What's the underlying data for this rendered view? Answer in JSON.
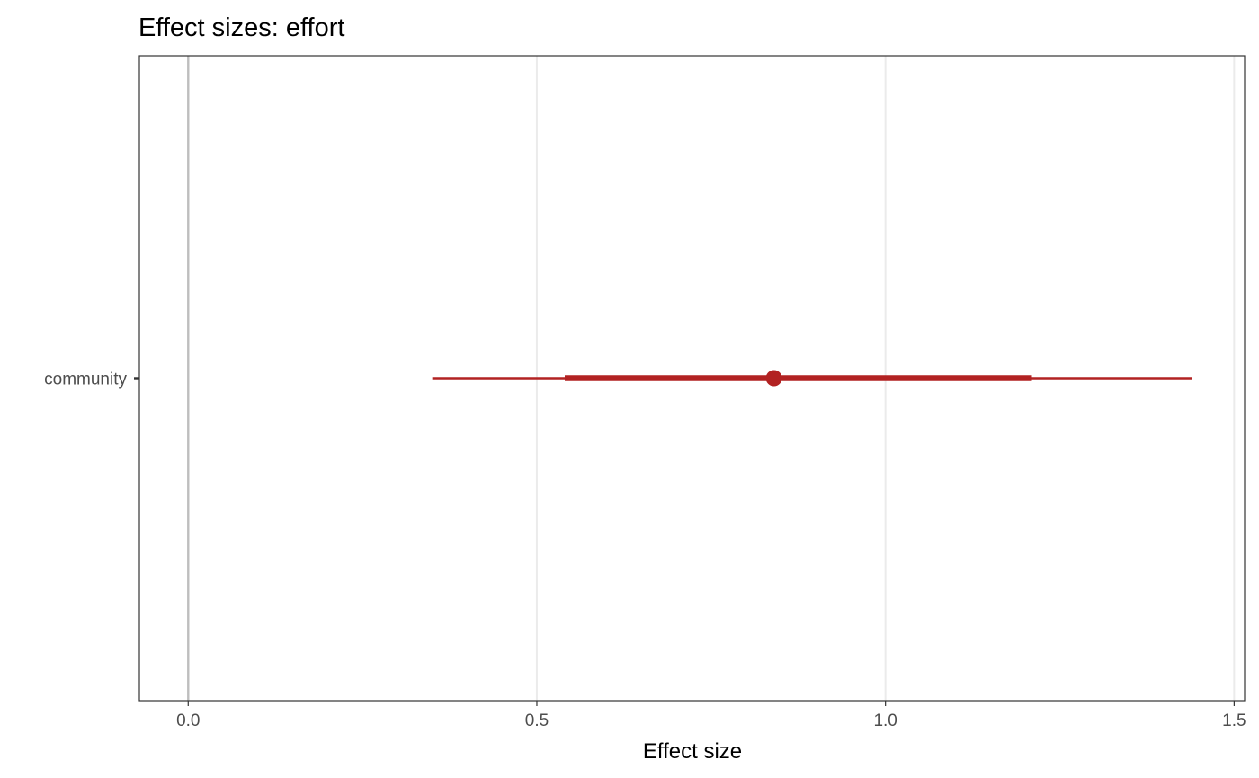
{
  "chart_data": {
    "type": "forest",
    "title": "Effect sizes: effort",
    "xlabel": "Effect size",
    "ylabel": "",
    "xlim": [
      -0.07,
      1.515
    ],
    "x_ticks": [
      0.0,
      0.5,
      1.0,
      1.5
    ],
    "x_tick_labels": [
      "0.0",
      "0.5",
      "1.0",
      "1.5"
    ],
    "reference_line": 0.0,
    "grid": "vertical major",
    "legend": "none",
    "categories": [
      "community"
    ],
    "series": [
      {
        "estimates": [
          0.84
        ],
        "inner_interval": [
          [
            0.54,
            1.21
          ]
        ],
        "outer_interval": [
          [
            0.35,
            1.44
          ]
        ],
        "color": "#B22222"
      }
    ]
  }
}
